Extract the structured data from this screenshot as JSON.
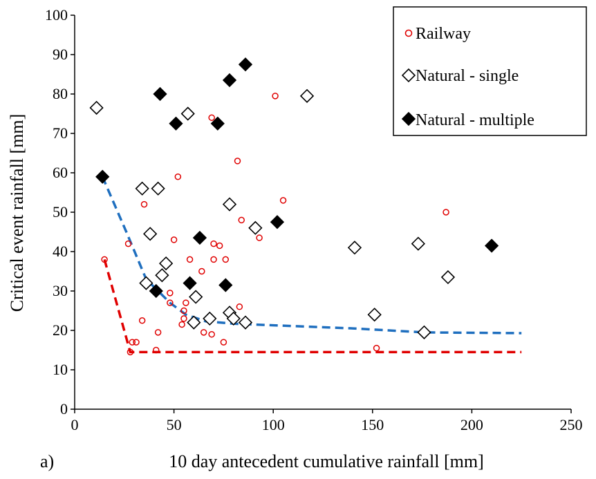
{
  "chart_data": {
    "type": "scatter",
    "panel_label": "a)",
    "xlabel": "10 day antecedent cumulative rainfall [mm]",
    "ylabel": "Critical event rainfall [mm]",
    "xlim": [
      0,
      250
    ],
    "ylim": [
      0,
      100
    ],
    "xticks": [
      0,
      50,
      100,
      150,
      200,
      250
    ],
    "yticks": [
      0,
      10,
      20,
      30,
      40,
      50,
      60,
      70,
      80,
      90,
      100
    ],
    "grid": false,
    "legend_position": "top-right",
    "series": [
      {
        "name": "Railway",
        "marker": "open-circle",
        "color": "#e00000",
        "points": [
          [
            15,
            38
          ],
          [
            27,
            42
          ],
          [
            28,
            14.5
          ],
          [
            29,
            17
          ],
          [
            31,
            17
          ],
          [
            34,
            22.5
          ],
          [
            35,
            52
          ],
          [
            41,
            15
          ],
          [
            42,
            19.5
          ],
          [
            48,
            29.5
          ],
          [
            48,
            27
          ],
          [
            50,
            43
          ],
          [
            52,
            59
          ],
          [
            54,
            21.5
          ],
          [
            55,
            23
          ],
          [
            55,
            25
          ],
          [
            56,
            27
          ],
          [
            58,
            38
          ],
          [
            64,
            35
          ],
          [
            65,
            19.5
          ],
          [
            69,
            19
          ],
          [
            69,
            74
          ],
          [
            70,
            38
          ],
          [
            70,
            42
          ],
          [
            73,
            41.5
          ],
          [
            75,
            17
          ],
          [
            76,
            38
          ],
          [
            82,
            63
          ],
          [
            83,
            26
          ],
          [
            84,
            48
          ],
          [
            93,
            43.5
          ],
          [
            101,
            79.5
          ],
          [
            105,
            53
          ],
          [
            152,
            15.5
          ],
          [
            187,
            50
          ]
        ]
      },
      {
        "name": "Natural - single",
        "marker": "open-diamond",
        "color": "#000000",
        "points": [
          [
            11,
            76.5
          ],
          [
            34,
            56
          ],
          [
            36,
            32
          ],
          [
            38,
            44.5
          ],
          [
            42,
            56
          ],
          [
            44,
            34
          ],
          [
            46,
            37
          ],
          [
            57,
            75
          ],
          [
            60,
            22
          ],
          [
            61,
            28.5
          ],
          [
            68,
            23
          ],
          [
            78,
            24.5
          ],
          [
            78,
            52
          ],
          [
            80,
            23
          ],
          [
            86,
            22
          ],
          [
            91,
            46
          ],
          [
            117,
            79.5
          ],
          [
            141,
            41
          ],
          [
            151,
            24
          ],
          [
            173,
            42
          ],
          [
            176,
            19.5
          ],
          [
            188,
            33.5
          ]
        ]
      },
      {
        "name": "Natural - multiple",
        "marker": "filled-diamond",
        "color": "#000000",
        "points": [
          [
            14,
            59
          ],
          [
            41,
            30
          ],
          [
            43,
            80
          ],
          [
            51,
            72.5
          ],
          [
            58,
            32
          ],
          [
            63,
            43.5
          ],
          [
            72,
            72.5
          ],
          [
            76,
            31.5
          ],
          [
            78,
            83.5
          ],
          [
            86,
            87.5
          ],
          [
            102,
            47.5
          ],
          [
            210,
            41.5
          ]
        ]
      }
    ],
    "threshold_lines": [
      {
        "style": "dashed",
        "color": "#1f6fbf",
        "points": [
          [
            14,
            59
          ],
          [
            26,
            45
          ],
          [
            36,
            33
          ],
          [
            48,
            27
          ],
          [
            56,
            24
          ],
          [
            66,
            22.3
          ],
          [
            80,
            21.7
          ],
          [
            100,
            21.3
          ],
          [
            140,
            20.5
          ],
          [
            176,
            19.5
          ],
          [
            225,
            19.3
          ]
        ]
      },
      {
        "style": "dashed",
        "color": "#e00000",
        "points": [
          [
            15,
            38
          ],
          [
            28,
            14.5
          ],
          [
            225,
            14.5
          ]
        ]
      }
    ]
  }
}
